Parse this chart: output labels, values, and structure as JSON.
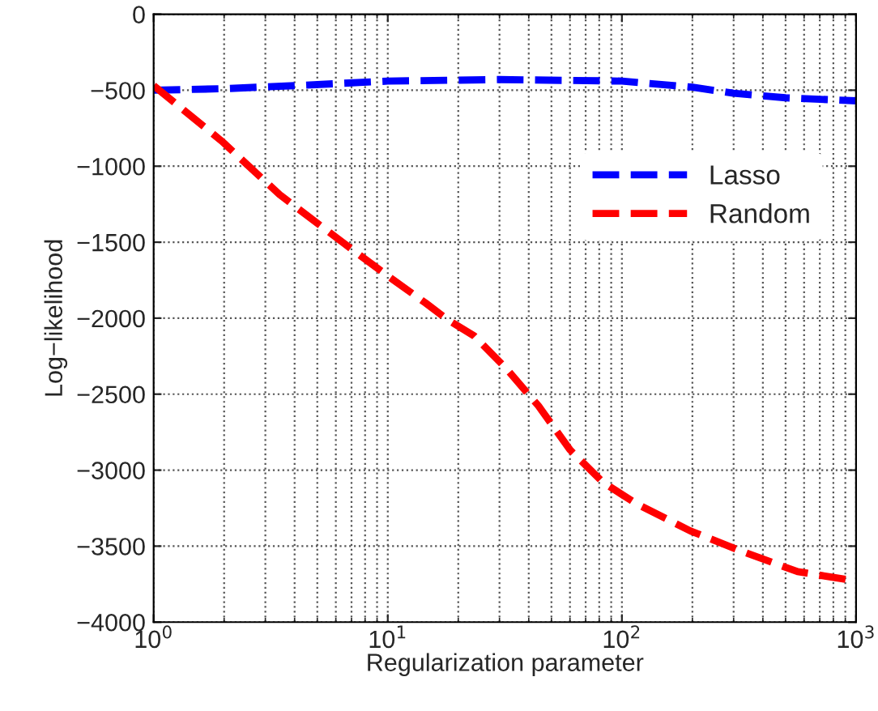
{
  "chart_data": {
    "type": "line",
    "xlabel": "Regularization parameter",
    "ylabel": "Log−likelihood",
    "log": "x",
    "grid": true,
    "legend": "right",
    "line_style": "dashed",
    "marker": "none",
    "xlim": [
      1,
      1000
    ],
    "xticks": [
      {
        "value": 1,
        "label": "10$^{0}$"
      },
      {
        "value": 10,
        "label": "10$^{1}$"
      },
      {
        "value": 100,
        "label": "10$^{2}$"
      },
      {
        "value": 1000,
        "label": "10$^{3}$"
      }
    ],
    "ylim": [
      -4000,
      0
    ],
    "yticks": [
      {
        "value": -4000,
        "label": "−4000"
      },
      {
        "value": -3500,
        "label": "−3500"
      },
      {
        "value": -3000,
        "label": "−3000"
      },
      {
        "value": -2500,
        "label": "−2500"
      },
      {
        "value": -2000,
        "label": "−2000"
      },
      {
        "value": -1500,
        "label": "−1500"
      },
      {
        "value": -1000,
        "label": "−1000"
      },
      {
        "value": -500,
        "label": "−500"
      },
      0
    ],
    "series": [
      {
        "name": "Lasso",
        "color": "#0000ff",
        "x": [
          1,
          2,
          4,
          10,
          30,
          100,
          200,
          300,
          500,
          1000
        ],
        "values": [
          -500,
          -490,
          -470,
          -440,
          -430,
          -440,
          -480,
          -520,
          -550,
          -570
        ]
      },
      {
        "name": "Random",
        "color": "#ff0000",
        "x": [
          1,
          1.95,
          3.45,
          6.5,
          10,
          14.5,
          18,
          23.4,
          32,
          44,
          60,
          83,
          115,
          196,
          333,
          563,
          1000
        ],
        "values": [
          -470,
          -834,
          -1187,
          -1508,
          -1722,
          -1900,
          -2010,
          -2117,
          -2330,
          -2577,
          -2866,
          -3080,
          -3220,
          -3400,
          -3540,
          -3668,
          -3730
        ]
      }
    ]
  }
}
